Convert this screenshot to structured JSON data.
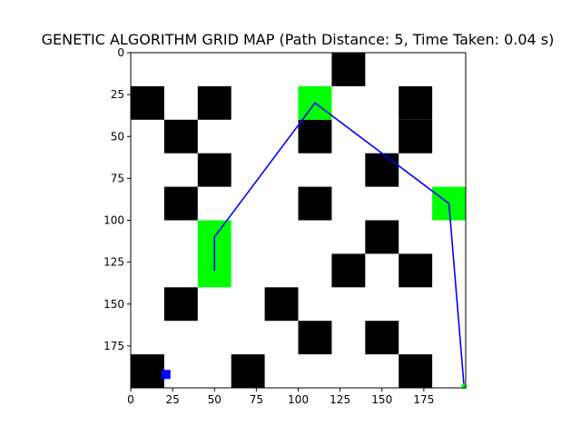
{
  "chart_data": {
    "type": "heatmap",
    "title": "GENETIC ALGORITHM GRID MAP (Path Distance: 5, Time Taken: 0.04 s)",
    "xlabel": "",
    "ylabel": "",
    "xlim": [
      0,
      200
    ],
    "ylim": [
      200,
      0
    ],
    "cell_size": 20,
    "x_ticks": [
      0,
      25,
      50,
      75,
      100,
      125,
      150,
      175
    ],
    "y_ticks": [
      0,
      25,
      50,
      75,
      100,
      125,
      150,
      175
    ],
    "grid": false,
    "colors": {
      "obstacle": "#000000",
      "waypoint": "#00ff00",
      "path": "#0000ff",
      "start": "#0000ff",
      "background": "#ffffff"
    },
    "obstacles": [
      [
        120,
        0
      ],
      [
        0,
        20
      ],
      [
        40,
        20
      ],
      [
        160,
        20
      ],
      [
        20,
        40
      ],
      [
        100,
        40
      ],
      [
        160,
        40
      ],
      [
        40,
        60
      ],
      [
        140,
        60
      ],
      [
        20,
        80
      ],
      [
        100,
        80
      ],
      [
        140,
        100
      ],
      [
        120,
        120
      ],
      [
        160,
        120
      ],
      [
        20,
        140
      ],
      [
        80,
        140
      ],
      [
        100,
        160
      ],
      [
        140,
        160
      ],
      [
        0,
        180
      ],
      [
        60,
        180
      ],
      [
        160,
        180
      ]
    ],
    "waypoint_cells": [
      [
        100,
        20,
        1
      ],
      [
        180,
        80,
        1
      ],
      [
        40,
        100,
        2
      ]
    ],
    "path": [
      [
        50,
        130
      ],
      [
        50,
        110
      ],
      [
        110,
        30
      ],
      [
        190,
        90
      ],
      [
        199,
        199
      ]
    ],
    "start_marker": [
      21,
      192
    ],
    "goal_marker": [
      199,
      199
    ]
  }
}
